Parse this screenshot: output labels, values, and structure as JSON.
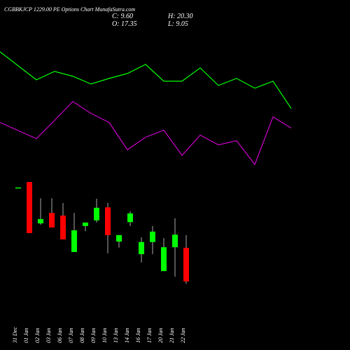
{
  "chart_data": {
    "type": "candlestick",
    "title": "CGBBKJCP 1229.00 PE Options Chart MunafaSutra.com",
    "info": [
      "C: 9.60",
      "H: 20.30",
      "O: 17.35",
      "L: 9.05"
    ],
    "categories": [
      "31 Dec",
      "01 Jan",
      "02 Jan",
      "03 Jan",
      "06 Jan",
      "07 Jan",
      "08 Jan",
      "09 Jan",
      "10 Jan",
      "13 Jan",
      "14 Jan",
      "16 Jan",
      "17 Jan",
      "20 Jan",
      "21 Jan",
      "22 Jan"
    ],
    "open": [
      31.3,
      32.55,
      23.0,
      25.4,
      24.8,
      16.4,
      22.4,
      23.7,
      26.7,
      18.8,
      23.3,
      15.9,
      18.7,
      12.0,
      17.5,
      17.35
    ],
    "high": [
      31.3,
      32.55,
      28.8,
      28.8,
      27.7,
      25.4,
      23.2,
      28.7,
      27.7,
      20.3,
      25.8,
      19.8,
      22.4,
      19.6,
      24.2,
      20.3
    ],
    "low": [
      31.3,
      20.76,
      22.7,
      22.05,
      19.3,
      16.4,
      21.2,
      23.2,
      16.1,
      17.4,
      22.4,
      14.0,
      15.9,
      12.0,
      10.7,
      9.05
    ],
    "close": [
      31.3,
      20.76,
      24.0,
      22.05,
      19.3,
      21.4,
      23.2,
      26.6,
      20.3,
      20.3,
      25.3,
      18.7,
      21.1,
      17.5,
      20.4,
      9.6
    ],
    "ylim": [
      0,
      40
    ],
    "up_color": "#00ff00",
    "down_color": "#ff0000",
    "indicators": {
      "ylim": [
        0,
        110
      ],
      "series": [
        {
          "color": "#00ff00",
          "values": [
            93,
            73,
            79,
            75.5,
            70,
            74,
            77.5,
            84,
            72,
            72,
            81.5,
            69,
            74,
            67,
            72,
            52.5
          ]
        },
        {
          "color": "#cc00cc",
          "values": [
            42.5,
            31,
            44,
            57.5,
            49,
            42.5,
            23,
            32,
            37,
            19,
            33.5,
            26.5,
            29.5,
            12.5,
            46.5,
            38.5
          ]
        }
      ]
    }
  }
}
